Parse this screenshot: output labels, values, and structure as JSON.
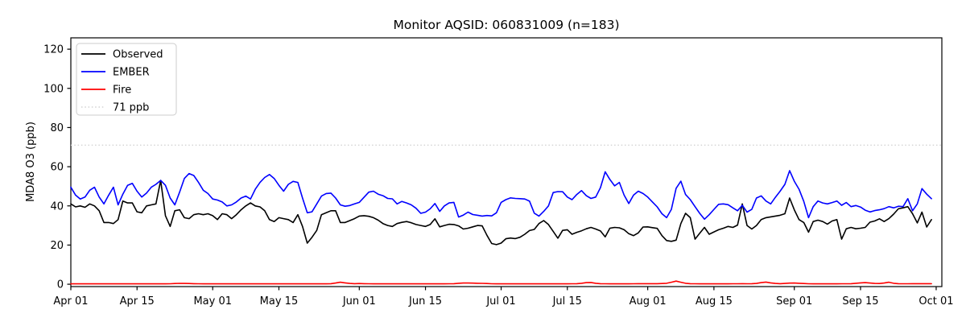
{
  "title": "Monitor AQSID: 060831009 (n=183)",
  "axes": {
    "ylabel": "MDA8 O3 (ppb)",
    "yticks": [
      0,
      20,
      40,
      60,
      80,
      100,
      120
    ],
    "ylim": [
      -1.2,
      125.8
    ],
    "xlim_days": [
      0,
      184.2
    ],
    "xticks": [
      {
        "label": "Apr 01",
        "day": 0
      },
      {
        "label": "Apr 15",
        "day": 14
      },
      {
        "label": "May 01",
        "day": 30
      },
      {
        "label": "May 15",
        "day": 44
      },
      {
        "label": "Jun 01",
        "day": 61
      },
      {
        "label": "Jun 15",
        "day": 75
      },
      {
        "label": "Jul 01",
        "day": 91
      },
      {
        "label": "Jul 15",
        "day": 105
      },
      {
        "label": "Aug 01",
        "day": 122
      },
      {
        "label": "Aug 15",
        "day": 136
      },
      {
        "label": "Sep 01",
        "day": 153
      },
      {
        "label": "Sep 15",
        "day": 167
      },
      {
        "label": "Oct 01",
        "day": 183
      }
    ],
    "grid": "off",
    "frame_color": "#000000"
  },
  "legend": {
    "position": "upper-left",
    "border_color": "#cccccc",
    "entries": [
      {
        "label": "Observed",
        "color": "#000000",
        "style": "solid"
      },
      {
        "label": "EMBER",
        "color": "#0000ff",
        "style": "solid"
      },
      {
        "label": "Fire",
        "color": "#ff0000",
        "style": "solid"
      },
      {
        "label": "71 ppb",
        "color": "#d3d3d3",
        "style": "dotted"
      }
    ]
  },
  "chart_data": {
    "type": "line",
    "title": "Monitor AQSID: 060831009 (n=183)",
    "xlabel": "",
    "ylabel": "MDA8 O3 (ppb)",
    "x_unit": "daily, Apr 01 through Sep 30",
    "n_points": 183,
    "threshold": {
      "label": "71 ppb",
      "value": 71,
      "color": "#d3d3d3"
    },
    "series": [
      {
        "name": "Observed",
        "color": "#000000",
        "values": [
          41,
          39.5,
          40,
          39.3,
          41,
          40,
          37.5,
          31.5,
          31.5,
          31,
          33,
          42.5,
          41.5,
          41.5,
          37,
          36.5,
          40,
          40.5,
          41,
          53,
          35,
          29.5,
          37.5,
          38,
          34,
          33.5,
          35.5,
          36,
          35.5,
          36,
          35,
          33,
          36,
          35.5,
          33.5,
          35.5,
          38,
          40,
          41.5,
          40,
          39.5,
          37.5,
          33,
          32,
          34,
          33.5,
          33,
          31.5,
          35.5,
          29.5,
          21,
          24,
          27.5,
          35.5,
          36.5,
          37.5,
          37.5,
          31.5,
          31.5,
          32.5,
          33.5,
          34.8,
          35,
          34.7,
          34,
          32.7,
          31,
          30,
          29.5,
          31,
          31.6,
          32,
          31.4,
          30.5,
          30,
          29.5,
          30.5,
          33.4,
          29.3,
          30,
          30.6,
          30.5,
          29.8,
          28.2,
          28.6,
          29.3,
          30,
          29.8,
          25,
          20.8,
          20.2,
          21,
          23.2,
          23.6,
          23.3,
          24,
          25.5,
          27.4,
          28,
          31,
          32.5,
          30.5,
          27,
          23.5,
          27.5,
          27.8,
          25.5,
          26.5,
          27.3,
          28.3,
          29,
          28.2,
          27.2,
          24.2,
          28.6,
          29,
          28.8,
          27.8,
          25.8,
          24.8,
          26.2,
          29.2,
          29.3,
          28.9,
          28.5,
          24.8,
          22.3,
          21.9,
          22.5,
          31,
          36.2,
          34,
          23,
          26,
          29,
          25.5,
          26.7,
          27.8,
          28.6,
          29.5,
          29,
          30.2,
          41,
          30,
          28.2,
          30,
          33,
          34,
          34.4,
          34.8,
          35.2,
          36,
          44,
          38,
          33,
          31.5,
          26.6,
          32,
          32.7,
          32,
          30.7,
          32.3,
          33,
          23,
          28.3,
          29,
          28.3,
          28.6,
          29,
          31.7,
          32.3,
          33.4,
          32,
          33.5,
          35.8,
          38.5,
          39,
          39.6,
          36,
          31.3,
          36.8,
          29.2,
          33
        ]
      },
      {
        "name": "EMBER",
        "color": "#0000ff",
        "values": [
          49.5,
          45.5,
          43.5,
          44.5,
          48,
          49.5,
          44.5,
          41,
          45.5,
          49.5,
          40.5,
          46,
          50.5,
          51.5,
          47.5,
          44.5,
          46.5,
          49.5,
          51,
          53,
          50.5,
          44,
          40.5,
          47,
          54,
          56.5,
          55.5,
          52,
          48,
          46.3,
          43.5,
          43,
          42,
          40,
          40.5,
          42,
          44,
          45,
          43.5,
          48.5,
          52,
          54.5,
          56,
          54,
          50.5,
          47.5,
          51,
          52.5,
          52,
          44,
          36.5,
          37,
          41,
          45,
          46.3,
          46.5,
          44,
          40.5,
          39.8,
          40.2,
          41,
          41.8,
          44.4,
          47,
          47.5,
          46,
          45.2,
          43.8,
          43.6,
          41,
          42.3,
          41.5,
          40.5,
          38.8,
          36.2,
          36.8,
          38.5,
          41.2,
          37.2,
          40,
          41.5,
          41.8,
          34.3,
          35.3,
          36.8,
          35.6,
          35.2,
          34.8,
          35.1,
          34.9,
          36.5,
          41.8,
          43.2,
          44.1,
          43.8,
          43.7,
          43.5,
          42.4,
          36.3,
          34.8,
          37.2,
          40,
          46.8,
          47.3,
          47.2,
          44.5,
          43.2,
          45.8,
          47.8,
          45.2,
          43.8,
          44.5,
          49.3,
          57.4,
          53.5,
          50.2,
          52,
          45.5,
          41.2,
          45.5,
          47.5,
          46.3,
          44.5,
          42,
          39.5,
          36,
          34,
          38.2,
          49,
          52.6,
          45.8,
          43.2,
          39.6,
          36.2,
          33.2,
          35.5,
          38.2,
          40.8,
          41,
          40.6,
          39,
          37.5,
          40.3,
          36.8,
          38.2,
          44,
          45.1,
          42.5,
          41,
          44.4,
          47.5,
          51,
          58,
          52.6,
          48.5,
          42.3,
          34,
          39.6,
          42.5,
          41.5,
          41,
          41.7,
          42.5,
          40.3,
          41.7,
          39.6,
          40.2,
          39.4,
          37.8,
          36.9,
          37.6,
          38,
          38.6,
          39.6,
          39,
          39.8,
          39.6,
          43.7,
          37.5,
          41,
          48.8,
          46,
          43.7
        ]
      },
      {
        "name": "Fire",
        "color": "#ff0000",
        "values": [
          0.2,
          0.2,
          0.2,
          0.2,
          0.2,
          0.2,
          0.2,
          0.2,
          0.2,
          0.2,
          0.2,
          0.2,
          0.2,
          0.2,
          0.2,
          0.2,
          0.2,
          0.2,
          0.2,
          0.2,
          0.2,
          0.25,
          0.35,
          0.45,
          0.4,
          0.35,
          0.3,
          0.25,
          0.2,
          0.2,
          0.2,
          0.2,
          0.2,
          0.2,
          0.2,
          0.2,
          0.2,
          0.2,
          0.2,
          0.2,
          0.2,
          0.2,
          0.2,
          0.2,
          0.2,
          0.2,
          0.2,
          0.2,
          0.2,
          0.2,
          0.2,
          0.2,
          0.2,
          0.2,
          0.2,
          0.3,
          0.6,
          1.0,
          0.7,
          0.4,
          0.3,
          0.35,
          0.3,
          0.25,
          0.2,
          0.2,
          0.2,
          0.2,
          0.2,
          0.2,
          0.2,
          0.2,
          0.2,
          0.2,
          0.2,
          0.2,
          0.2,
          0.2,
          0.2,
          0.2,
          0.25,
          0.3,
          0.5,
          0.6,
          0.6,
          0.55,
          0.5,
          0.45,
          0.35,
          0.25,
          0.2,
          0.2,
          0.2,
          0.2,
          0.2,
          0.2,
          0.2,
          0.2,
          0.2,
          0.2,
          0.2,
          0.2,
          0.2,
          0.2,
          0.2,
          0.2,
          0.25,
          0.3,
          0.5,
          0.8,
          0.9,
          0.5,
          0.3,
          0.25,
          0.2,
          0.2,
          0.2,
          0.2,
          0.2,
          0.25,
          0.3,
          0.3,
          0.3,
          0.3,
          0.3,
          0.35,
          0.5,
          1.0,
          1.6,
          1.0,
          0.5,
          0.3,
          0.25,
          0.2,
          0.2,
          0.2,
          0.2,
          0.2,
          0.2,
          0.2,
          0.25,
          0.25,
          0.3,
          0.25,
          0.3,
          0.4,
          0.8,
          1.1,
          0.7,
          0.4,
          0.3,
          0.4,
          0.55,
          0.6,
          0.5,
          0.35,
          0.25,
          0.2,
          0.2,
          0.2,
          0.2,
          0.2,
          0.2,
          0.25,
          0.25,
          0.3,
          0.5,
          0.7,
          0.8,
          0.6,
          0.4,
          0.35,
          0.6,
          1.0,
          0.5,
          0.3,
          0.25,
          0.25,
          0.3,
          0.3,
          0.3,
          0.3,
          0.3
        ]
      }
    ]
  }
}
